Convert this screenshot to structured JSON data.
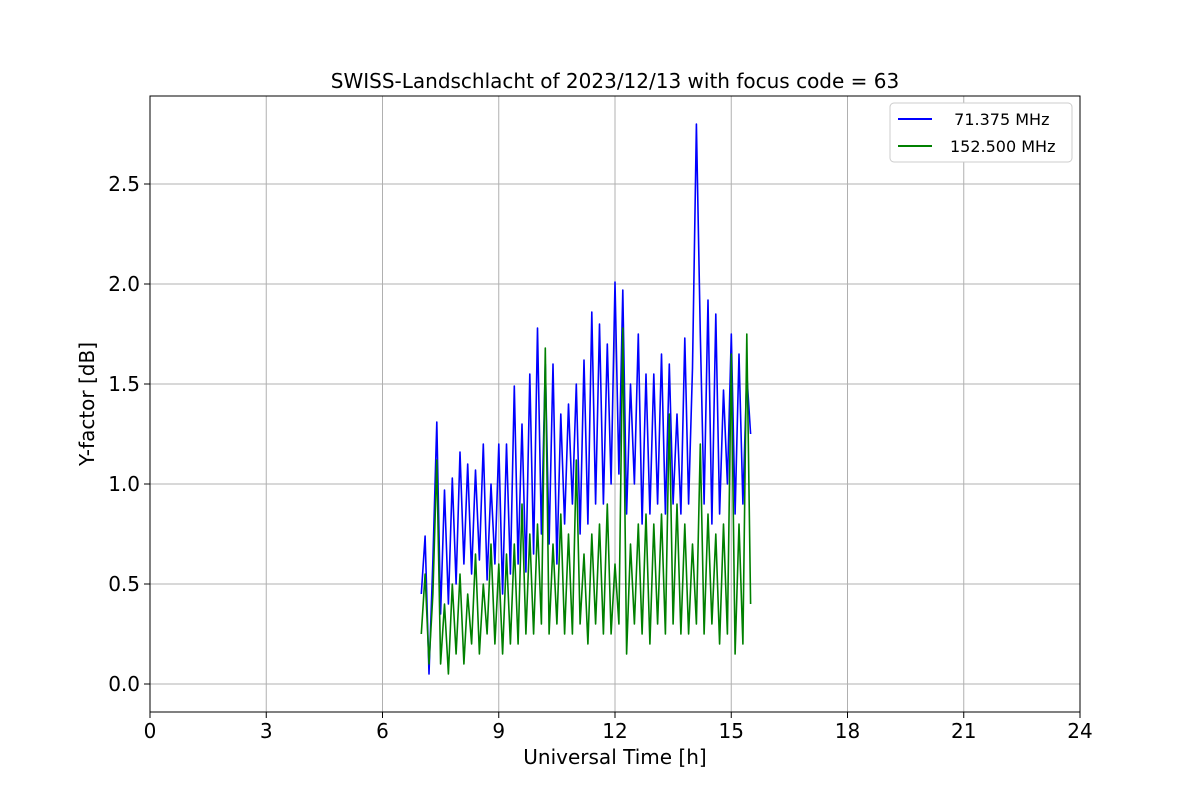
{
  "chart_data": {
    "type": "line",
    "title": "SWISS-Landschlacht of 2023/12/13 with focus code = 63",
    "xlabel": "Universal Time [h]",
    "ylabel": "Y-factor [dB]",
    "xlim": [
      0,
      24
    ],
    "ylim": [
      -0.14,
      2.94
    ],
    "xticks": [
      0,
      3,
      6,
      9,
      12,
      15,
      18,
      21,
      24
    ],
    "xtick_labels": [
      "0",
      "3",
      "6",
      "9",
      "12",
      "15",
      "18",
      "21",
      "24"
    ],
    "yticks": [
      0.0,
      0.5,
      1.0,
      1.5,
      2.0,
      2.5
    ],
    "ytick_labels": [
      "0.0",
      "0.5",
      "1.0",
      "1.5",
      "2.0",
      "2.5"
    ],
    "grid": true,
    "legend": "top-right",
    "series": [
      {
        "name": "  71.375 MHz",
        "color": "#0000ff",
        "x": [
          7.0,
          7.1,
          7.2,
          7.3,
          7.4,
          7.5,
          7.6,
          7.7,
          7.8,
          7.9,
          8.0,
          8.1,
          8.2,
          8.3,
          8.4,
          8.5,
          8.6,
          8.7,
          8.8,
          8.9,
          9.0,
          9.1,
          9.2,
          9.3,
          9.4,
          9.5,
          9.6,
          9.7,
          9.8,
          9.9,
          10.0,
          10.1,
          10.2,
          10.3,
          10.4,
          10.5,
          10.6,
          10.7,
          10.8,
          10.9,
          11.0,
          11.1,
          11.2,
          11.3,
          11.4,
          11.5,
          11.6,
          11.7,
          11.8,
          11.9,
          12.0,
          12.1,
          12.2,
          12.3,
          12.4,
          12.5,
          12.6,
          12.7,
          12.8,
          12.9,
          13.0,
          13.1,
          13.2,
          13.3,
          13.4,
          13.5,
          13.6,
          13.7,
          13.8,
          13.9,
          14.0,
          14.1,
          14.2,
          14.3,
          14.4,
          14.5,
          14.6,
          14.7,
          14.8,
          14.9,
          15.0,
          15.1,
          15.2,
          15.3,
          15.4,
          15.5
        ],
        "y": [
          0.45,
          0.74,
          0.05,
          0.62,
          1.31,
          0.35,
          0.97,
          0.4,
          1.03,
          0.5,
          1.16,
          0.6,
          1.1,
          0.55,
          1.07,
          0.62,
          1.2,
          0.52,
          1.0,
          0.6,
          1.2,
          0.45,
          1.2,
          0.55,
          1.49,
          0.6,
          1.3,
          0.56,
          1.55,
          0.65,
          1.78,
          0.75,
          1.6,
          0.7,
          1.6,
          0.6,
          1.35,
          0.8,
          1.4,
          0.9,
          1.5,
          0.75,
          1.62,
          0.8,
          1.86,
          0.9,
          1.8,
          0.9,
          1.7,
          1.0,
          2.01,
          1.05,
          1.97,
          0.85,
          1.5,
          1.0,
          1.75,
          0.8,
          1.55,
          0.85,
          1.55,
          0.9,
          1.65,
          0.85,
          1.6,
          0.9,
          1.35,
          0.85,
          1.73,
          0.9,
          1.58,
          2.8,
          1.75,
          0.9,
          1.92,
          0.8,
          1.85,
          0.85,
          1.47,
          1.0,
          1.75,
          0.85,
          1.65,
          0.9,
          1.55,
          1.25
        ]
      },
      {
        "name": "152.500 MHz",
        "color": "#008000",
        "x": [
          7.0,
          7.1,
          7.2,
          7.3,
          7.4,
          7.5,
          7.6,
          7.7,
          7.8,
          7.9,
          8.0,
          8.1,
          8.2,
          8.3,
          8.4,
          8.5,
          8.6,
          8.7,
          8.8,
          8.9,
          9.0,
          9.1,
          9.2,
          9.3,
          9.4,
          9.5,
          9.6,
          9.7,
          9.8,
          9.9,
          10.0,
          10.1,
          10.2,
          10.3,
          10.4,
          10.5,
          10.6,
          10.7,
          10.8,
          10.9,
          11.0,
          11.1,
          11.2,
          11.3,
          11.4,
          11.5,
          11.6,
          11.7,
          11.8,
          11.9,
          12.0,
          12.1,
          12.2,
          12.3,
          12.4,
          12.5,
          12.6,
          12.7,
          12.8,
          12.9,
          13.0,
          13.1,
          13.2,
          13.3,
          13.4,
          13.5,
          13.6,
          13.7,
          13.8,
          13.9,
          14.0,
          14.1,
          14.2,
          14.3,
          14.4,
          14.5,
          14.6,
          14.7,
          14.8,
          14.9,
          15.0,
          15.1,
          15.2,
          15.3,
          15.4,
          15.5
        ],
        "y": [
          0.25,
          0.55,
          0.1,
          0.45,
          1.12,
          0.1,
          0.4,
          0.05,
          0.5,
          0.15,
          0.55,
          0.1,
          0.45,
          0.2,
          0.65,
          0.15,
          0.5,
          0.25,
          0.7,
          0.2,
          0.6,
          0.15,
          0.65,
          0.2,
          0.7,
          0.2,
          0.9,
          0.25,
          0.75,
          0.25,
          0.8,
          0.3,
          1.68,
          0.25,
          0.7,
          0.3,
          0.85,
          0.25,
          0.75,
          0.25,
          1.12,
          0.3,
          0.65,
          0.2,
          0.75,
          0.3,
          0.8,
          0.25,
          0.9,
          0.25,
          0.6,
          0.3,
          1.78,
          0.15,
          0.7,
          0.3,
          0.8,
          0.25,
          0.85,
          0.2,
          0.8,
          0.3,
          0.85,
          0.25,
          1.35,
          0.3,
          0.9,
          0.25,
          0.8,
          0.25,
          0.7,
          0.3,
          1.2,
          0.25,
          0.85,
          0.3,
          0.75,
          0.2,
          0.8,
          0.25,
          1.65,
          0.15,
          0.8,
          0.2,
          1.75,
          0.4
        ]
      }
    ]
  }
}
